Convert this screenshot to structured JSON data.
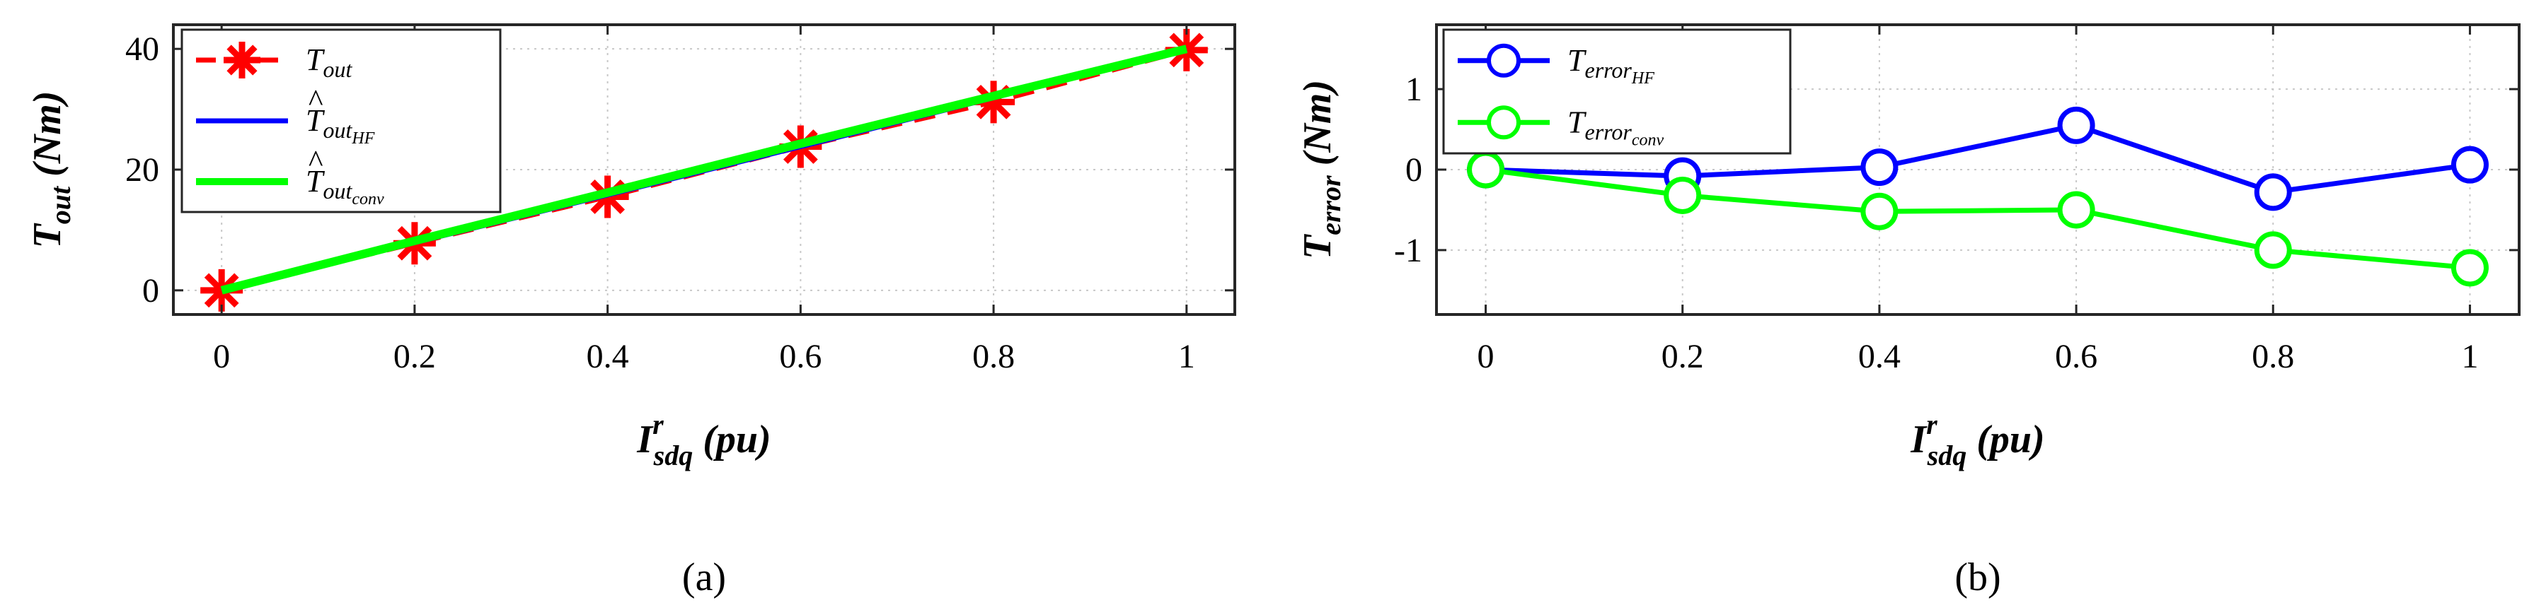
{
  "chart_data": [
    {
      "type": "line",
      "panel_label": "(a)",
      "xlabel_main": "I",
      "xlabel_sup": "r",
      "xlabel_sub": "sdq",
      "xlabel_unit": "(pu)",
      "ylabel_main": "T",
      "ylabel_sub": "out",
      "ylabel_unit": "(Nm)",
      "x": [
        0,
        0.2,
        0.4,
        0.6,
        0.8,
        1
      ],
      "x_tick_labels": [
        "0",
        "0.2",
        "0.4",
        "0.6",
        "0.8",
        "1"
      ],
      "xlim": [
        -0.05,
        1.05
      ],
      "ylim": [
        -4,
        44
      ],
      "y_ticks": [
        0,
        20,
        40
      ],
      "y_tick_labels": [
        "0",
        "20",
        "40"
      ],
      "grid": true,
      "legend_position": "top-left",
      "series": [
        {
          "name": "T_out",
          "legend_main": "T",
          "legend_sub": "out",
          "legend_hat": false,
          "color": "#ff0000",
          "style": "dashed",
          "marker": "asterisk",
          "values": [
            0,
            7.8,
            15.5,
            23.8,
            31.2,
            39.8
          ]
        },
        {
          "name": "T̂_out_HF",
          "legend_main": "T",
          "legend_sub": "out",
          "legend_subsub": "HF",
          "legend_hat": true,
          "color": "#0000ff",
          "style": "solid",
          "marker": "none",
          "values": [
            0,
            7.9,
            15.8,
            23.8,
            31.9,
            40.0
          ]
        },
        {
          "name": "T̂_out_conv",
          "legend_main": "T",
          "legend_sub": "out",
          "legend_subsub": "conv",
          "legend_hat": true,
          "color": "#00ff00",
          "style": "solid",
          "marker": "none",
          "values": [
            0,
            8.2,
            16.2,
            24.3,
            32.2,
            40.0
          ]
        }
      ]
    },
    {
      "type": "line",
      "panel_label": "(b)",
      "xlabel_main": "I",
      "xlabel_sup": "r",
      "xlabel_sub": "sdq",
      "xlabel_unit": "(pu)",
      "ylabel_main": "T",
      "ylabel_sub": "error",
      "ylabel_unit": "(Nm)",
      "x": [
        0,
        0.2,
        0.4,
        0.6,
        0.8,
        1
      ],
      "x_tick_labels": [
        "0",
        "0.2",
        "0.4",
        "0.6",
        "0.8",
        "1"
      ],
      "xlim": [
        -0.05,
        1.05
      ],
      "ylim": [
        -1.8,
        1.8
      ],
      "y_ticks": [
        -1,
        0,
        1
      ],
      "y_tick_labels": [
        "-1",
        "0",
        "1"
      ],
      "grid": true,
      "legend_position": "top-left",
      "series": [
        {
          "name": "T_error_HF",
          "legend_main": "T",
          "legend_sub": "error",
          "legend_subsub": "HF",
          "legend_hat": false,
          "color": "#0000ff",
          "style": "solid",
          "marker": "circle",
          "values": [
            0,
            -0.08,
            0.03,
            0.55,
            -0.28,
            0.06
          ]
        },
        {
          "name": "T_error_conv",
          "legend_main": "T",
          "legend_sub": "error",
          "legend_subsub": "conv",
          "legend_hat": false,
          "color": "#00ff00",
          "style": "solid",
          "marker": "circle",
          "values": [
            0,
            -0.32,
            -0.52,
            -0.5,
            -1.0,
            -1.22
          ]
        }
      ]
    }
  ]
}
